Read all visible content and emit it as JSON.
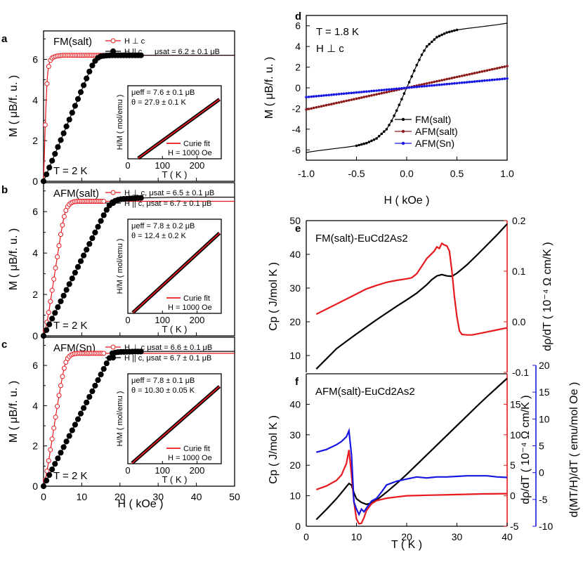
{
  "figure_labels": [
    "a",
    "b",
    "c",
    "d",
    "e",
    "f"
  ],
  "colors": {
    "black": "#000000",
    "red": "#e8191e",
    "darkred": "#8b1a1a",
    "blue": "#1616e0",
    "open_red": "#e8191e"
  },
  "chart_data": [
    {
      "id": "a",
      "type": "line",
      "title": "FM(salt)",
      "condition": "T = 2 K",
      "ylabel": "M ( μB/f. u. )",
      "xlabel": "",
      "xlim": [
        0,
        50
      ],
      "ylim": [
        0,
        7.4
      ],
      "yticks": [
        "0",
        "2",
        "4",
        "6"
      ],
      "xticks": [],
      "legend": [
        "H ⊥ c",
        "H || c"
      ],
      "legend_extra": "μsat = 6.2 ± 0.1 μB",
      "series": [
        {
          "name": "H ⊥ c",
          "style": "open",
          "x": [
            0,
            0.2,
            0.4,
            0.6,
            0.8,
            1,
            1.2,
            1.5,
            1.8,
            2.1,
            2.5,
            3,
            3.5,
            4,
            5,
            6,
            7,
            8,
            10,
            12,
            15,
            20,
            25,
            30,
            35,
            40,
            45,
            50
          ],
          "y": [
            0,
            1.2,
            2.5,
            3.6,
            4.5,
            5.1,
            5.5,
            5.8,
            5.95,
            6.05,
            6.1,
            6.14,
            6.16,
            6.18,
            6.2,
            6.2,
            6.2,
            6.2,
            6.2,
            6.2,
            6.2,
            6.2,
            6.2,
            6.2,
            6.2,
            6.2,
            6.2,
            6.2
          ]
        },
        {
          "name": "H || c",
          "style": "filled",
          "x": [
            0,
            1,
            2,
            3,
            4,
            5,
            6,
            7,
            8,
            9,
            10,
            11,
            12,
            13,
            14,
            15,
            16,
            18,
            20,
            25,
            30,
            35,
            40,
            45,
            50
          ],
          "y": [
            0,
            0.45,
            0.9,
            1.35,
            1.8,
            2.25,
            2.7,
            3.15,
            3.6,
            4.05,
            4.5,
            4.95,
            5.4,
            5.8,
            6.05,
            6.15,
            6.18,
            6.2,
            6.2,
            6.2,
            6.2,
            6.2,
            6.2,
            6.2,
            6.2
          ]
        }
      ],
      "inset": {
        "ylabel": "H/M ( mol/emu )",
        "xlabel": "T ( K )",
        "xlim": [
          0,
          270
        ],
        "ylim": [
          0,
          36
        ],
        "xticks": [
          "0",
          "100",
          "200"
        ],
        "legend": "Curie fit",
        "field": "H = 1000 Oe",
        "line1": "μeff = 7.6 ± 0.1 μB",
        "line2": "θ = 27.9 ± 0.1 K",
        "theta": 27.9,
        "slope": 0.1235
      }
    },
    {
      "id": "b",
      "type": "line",
      "title": "AFM(salt)",
      "condition": "T = 2 K",
      "ylabel": "M ( μB/f. u. )",
      "xlabel": "",
      "xlim": [
        0,
        50
      ],
      "ylim": [
        0,
        7.4
      ],
      "yticks": [
        "0",
        "2",
        "4",
        "6"
      ],
      "xticks": [],
      "legend": [
        "H ⊥ c, μsat = 6.5 ± 0.1 μB",
        "H || c, μsat = 6.7 ± 0.1 μB"
      ],
      "series": [
        {
          "name": "H ⊥ c",
          "style": "open",
          "x": [
            0,
            0.5,
            1,
            1.5,
            2,
            2.5,
            3,
            3.5,
            4,
            4.5,
            5,
            5.5,
            6,
            6.5,
            7,
            7.5,
            8,
            9,
            10,
            12,
            15,
            20,
            25,
            30,
            35,
            40,
            45,
            50
          ],
          "y": [
            0,
            0.3,
            0.75,
            1.3,
            1.9,
            2.5,
            3.1,
            3.7,
            4.3,
            4.9,
            5.4,
            5.85,
            6.15,
            6.3,
            6.4,
            6.45,
            6.48,
            6.5,
            6.5,
            6.5,
            6.5,
            6.5,
            6.5,
            6.5,
            6.5,
            6.5,
            6.5,
            6.5
          ]
        },
        {
          "name": "H || c",
          "style": "filled",
          "x": [
            0,
            1,
            2,
            3,
            4,
            5,
            6,
            7,
            8,
            9,
            10,
            11,
            12,
            13,
            14,
            15,
            16,
            17,
            18,
            19,
            20,
            22,
            25,
            30,
            35,
            40,
            45,
            50
          ],
          "y": [
            0,
            0.37,
            0.74,
            1.11,
            1.48,
            1.85,
            2.22,
            2.59,
            2.96,
            3.33,
            3.7,
            4.07,
            4.44,
            4.81,
            5.18,
            5.55,
            5.92,
            6.25,
            6.45,
            6.55,
            6.6,
            6.63,
            6.66,
            6.68,
            6.7,
            6.7,
            6.7,
            6.7
          ]
        }
      ],
      "inset": {
        "ylabel": "H/M ( mol/emu )",
        "xlabel": "T ( K )",
        "xlim": [
          0,
          270
        ],
        "ylim": [
          0,
          36
        ],
        "xticks": [
          "0",
          "100",
          "200"
        ],
        "legend": "Curie fit",
        "field": "H = 1000 Oe",
        "line1": "μeff = 7.8 ± 0.2 μB",
        "line2": "θ = 12.4 ± 0.2 K",
        "theta": 12.4,
        "slope": 0.1215
      }
    },
    {
      "id": "c",
      "type": "line",
      "title": "AFM(Sn)",
      "condition": "T = 2 K",
      "ylabel": "M ( μB/f. u. )",
      "xlabel": "H ( kOe )",
      "xlim": [
        0,
        50
      ],
      "ylim": [
        0,
        7.4
      ],
      "yticks": [
        "0",
        "2",
        "4",
        "6"
      ],
      "xticks": [
        "0",
        "10",
        "20",
        "30",
        "40",
        "50"
      ],
      "legend": [
        "H ⊥ c μsat = 6.6 ± 0.1 μB",
        "H || c, μsat = 6.7 ± 0.1 μB"
      ],
      "series": [
        {
          "name": "H ⊥ c",
          "style": "open",
          "x": [
            0,
            0.5,
            1,
            1.5,
            2,
            2.5,
            3,
            3.5,
            4,
            4.5,
            5,
            5.5,
            6,
            6.5,
            7,
            7.5,
            8,
            9,
            10,
            12,
            15,
            20,
            25,
            30,
            35,
            40,
            45,
            50
          ],
          "y": [
            0,
            0.35,
            0.85,
            1.45,
            2.05,
            2.65,
            3.25,
            3.85,
            4.45,
            5.0,
            5.5,
            5.95,
            6.25,
            6.4,
            6.5,
            6.55,
            6.58,
            6.6,
            6.6,
            6.6,
            6.6,
            6.6,
            6.6,
            6.6,
            6.6,
            6.6,
            6.6,
            6.6
          ]
        },
        {
          "name": "H || c",
          "style": "filled",
          "x": [
            0,
            1,
            2,
            3,
            4,
            5,
            6,
            7,
            8,
            9,
            10,
            11,
            12,
            13,
            14,
            15,
            16,
            17,
            18,
            19,
            20,
            22,
            25,
            30,
            35,
            40,
            45,
            50
          ],
          "y": [
            0,
            0.37,
            0.74,
            1.11,
            1.48,
            1.85,
            2.22,
            2.59,
            2.96,
            3.33,
            3.7,
            4.07,
            4.44,
            4.81,
            5.18,
            5.55,
            5.92,
            6.29,
            6.6,
            6.65,
            6.67,
            6.68,
            6.69,
            6.7,
            6.7,
            6.7,
            6.7,
            6.7
          ]
        }
      ],
      "inset": {
        "ylabel": "H/M ( mol/emu )",
        "xlabel": "T ( K )",
        "xlim": [
          0,
          270
        ],
        "ylim": [
          0,
          36
        ],
        "xticks": [
          "0",
          "100",
          "200"
        ],
        "legend": "Curie fit",
        "field": "H = 1000 Oe",
        "line1": "μeff = 7.8 ± 0.1 μB",
        "line2": "θ = 10.30 ± 0.05 K",
        "theta": 10.3,
        "slope": 0.1215
      }
    },
    {
      "id": "d",
      "type": "line",
      "title": "T = 1.8 K",
      "subtitle": "H ⊥ c",
      "xlabel": "H ( kOe )",
      "ylabel": "M ( μB/f. u. )",
      "xlim": [
        -1.0,
        1.0
      ],
      "ylim": [
        -7,
        7
      ],
      "xticks": [
        "-1.0",
        "-0.5",
        "0.0",
        "0.5",
        "1.0"
      ],
      "yticks": [
        "-6",
        "-4",
        "-2",
        "0",
        "2",
        "4",
        "6"
      ],
      "series": [
        {
          "name": "FM(salt)",
          "x": [
            -1,
            -0.9,
            -0.8,
            -0.7,
            -0.6,
            -0.5,
            -0.4,
            -0.3,
            -0.2,
            -0.15,
            -0.1,
            -0.05,
            0,
            0.05,
            0.1,
            0.15,
            0.2,
            0.3,
            0.4,
            0.5,
            0.6,
            0.7,
            0.8,
            0.9,
            1
          ],
          "y": [
            -6.25,
            -6.1,
            -5.98,
            -5.86,
            -5.74,
            -5.6,
            -5.35,
            -4.9,
            -4.0,
            -3.2,
            -2.2,
            -1.1,
            0,
            1.1,
            2.2,
            3.2,
            4.0,
            4.9,
            5.35,
            5.6,
            5.74,
            5.86,
            5.98,
            6.1,
            6.25
          ]
        },
        {
          "name": "AFM(salt)",
          "x": [
            -1,
            -0.5,
            0,
            0.5,
            1
          ],
          "y": [
            -2.1,
            -1.05,
            0,
            1.05,
            2.1
          ]
        },
        {
          "name": "AFM(Sn)",
          "x": [
            -1,
            -0.5,
            0,
            0.5,
            1
          ],
          "y": [
            -0.9,
            -0.45,
            0,
            0.45,
            0.9
          ]
        }
      ]
    },
    {
      "id": "e",
      "type": "line",
      "title": "FM(salt)-EuCd2As2",
      "ylabel_left": "Cp ( J/mol K )",
      "ylabel_right": "dρ/dT ( 10⁻⁴ Ω cm/K )",
      "xlim": [
        0,
        40
      ],
      "ylim_left": [
        5,
        50
      ],
      "ylim_right": [
        -0.1,
        0.2
      ],
      "yticks_left": [
        "10",
        "20",
        "30",
        "40",
        "50"
      ],
      "yticks_right": [
        "-0.1",
        "0.0",
        "0.1",
        "0.2"
      ],
      "series": [
        {
          "name": "Cp",
          "axis": "left",
          "color": "#000000",
          "x": [
            2,
            3,
            4,
            5,
            6,
            8,
            10,
            12,
            14,
            16,
            18,
            20,
            22,
            24,
            25,
            26,
            27,
            28,
            29,
            30,
            32,
            34,
            36,
            38,
            40
          ],
          "y": [
            6,
            7.5,
            9,
            10.5,
            12,
            14.2,
            16.4,
            18.5,
            20.6,
            22.6,
            24.6,
            26.5,
            28.5,
            31,
            32.5,
            33.6,
            34,
            33.6,
            33.5,
            34.4,
            36.9,
            39.8,
            42.8,
            45.8,
            49
          ]
        },
        {
          "name": "dρ/dT",
          "axis": "right",
          "color": "#e8191e",
          "x": [
            2,
            4,
            6,
            8,
            10,
            12,
            14,
            16,
            18,
            20,
            21,
            22,
            23,
            24,
            25,
            25.5,
            26,
            26.5,
            27,
            27.5,
            28,
            28.5,
            29,
            29.5,
            30,
            30.5,
            31,
            32,
            33,
            34,
            36,
            38,
            40
          ],
          "y": [
            0.015,
            0.025,
            0.035,
            0.045,
            0.055,
            0.065,
            0.072,
            0.078,
            0.082,
            0.085,
            0.087,
            0.095,
            0.11,
            0.125,
            0.135,
            0.14,
            0.148,
            0.145,
            0.155,
            0.152,
            0.15,
            0.14,
            0.1,
            0.05,
            0.01,
            -0.018,
            -0.025,
            -0.026,
            -0.026,
            -0.024,
            -0.02,
            -0.016,
            -0.012
          ]
        }
      ]
    },
    {
      "id": "f",
      "type": "line",
      "title": "AFM(salt)-EuCd2As2",
      "xlabel": "T ( K )",
      "ylabel_left": "Cp ( J/mol K )",
      "ylabel_mid": "dρ/dT ( 10⁻⁴ Ω cm/K )",
      "ylabel_right": "d(MT/H)/dT ( emu/mol Oe )",
      "xlim": [
        0,
        40
      ],
      "ylim_left": [
        0,
        50
      ],
      "ylim_mid": [
        -5,
        20
      ],
      "ylim_right": [
        -10,
        20
      ],
      "xticks": [
        "0",
        "10",
        "20",
        "30",
        "40"
      ],
      "yticks_left": [
        "0",
        "10",
        "20",
        "30",
        "40"
      ],
      "yticks_mid": [
        "-5",
        "0",
        "5",
        "10",
        "15"
      ],
      "yticks_right": [
        "-10",
        "-5",
        "0",
        "5",
        "10",
        "15",
        "20"
      ],
      "series": [
        {
          "name": "Cp",
          "axis": "left",
          "color": "#000000",
          "x": [
            2,
            4,
            6,
            7,
            8,
            8.5,
            9,
            9.5,
            10,
            11,
            12,
            13,
            14,
            16,
            18,
            20,
            22,
            24,
            26,
            28,
            30,
            32,
            34,
            36,
            38,
            40
          ],
          "y": [
            2.2,
            5.5,
            9,
            11,
            13,
            14,
            13.5,
            11,
            9,
            7.8,
            7.2,
            7.6,
            8.6,
            11.2,
            14,
            17,
            20.2,
            23.4,
            26.6,
            29.8,
            33,
            36.2,
            39.4,
            42.5,
            45.5,
            48.5
          ]
        },
        {
          "name": "dρ/dT",
          "axis": "mid",
          "color": "#e8191e",
          "x": [
            2,
            4,
            6,
            7,
            8,
            8.5,
            9,
            9.5,
            10,
            10.5,
            11,
            11.5,
            12,
            13,
            14,
            16,
            18,
            20,
            25,
            30,
            35,
            40
          ],
          "y": [
            1,
            1.6,
            2.5,
            3.4,
            5.3,
            7.5,
            3.5,
            -1,
            -3.8,
            -4.6,
            -4.5,
            -3.6,
            -2.4,
            -1.3,
            -0.8,
            -0.4,
            -0.2,
            0,
            0.1,
            0.2,
            0.3,
            0.35
          ]
        },
        {
          "name": "d(MT/H)/dT",
          "axis": "right",
          "color": "#1616e0",
          "x": [
            2,
            4,
            6,
            7,
            8,
            8.5,
            9,
            9.5,
            10,
            10.5,
            11,
            11.5,
            12,
            13,
            14,
            15,
            16,
            18,
            20,
            22,
            24,
            25,
            26,
            28,
            30,
            32,
            34,
            36,
            38,
            40
          ],
          "y": [
            3.8,
            4.3,
            5.2,
            5.8,
            6.7,
            7.8,
            3.3,
            -5.5,
            -6.8,
            -7.8,
            -6.8,
            -7.3,
            -6.6,
            -5.3,
            -4.8,
            -3.6,
            -2.3,
            -1.6,
            -1.2,
            -0.8,
            -1.0,
            -0.9,
            -0.8,
            -0.8,
            -0.7,
            -0.6,
            -0.6,
            -0.6,
            -0.8,
            -0.9
          ]
        }
      ]
    }
  ]
}
